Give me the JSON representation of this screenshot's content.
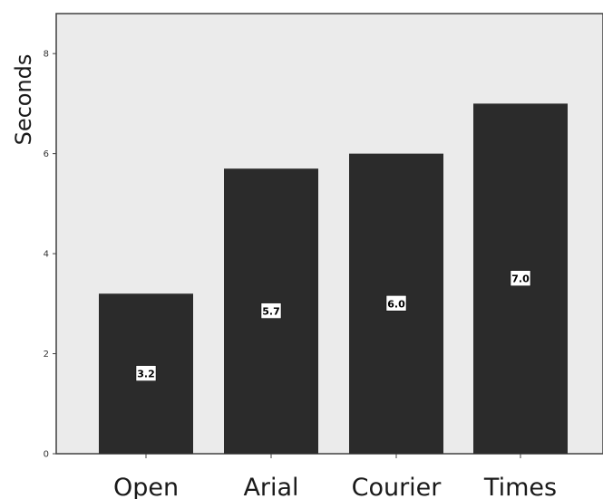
{
  "chart_data": {
    "type": "bar",
    "categories": [
      "Open",
      "Arial",
      "Courier",
      "Times"
    ],
    "values": [
      3.2,
      5.7,
      6.0,
      7.0
    ],
    "data_labels": [
      "3.2",
      "5.7",
      "6.0",
      "7.0"
    ],
    "title": "",
    "xlabel": "",
    "ylabel": "Seconds",
    "ylim": [
      0,
      8.8
    ],
    "yticks": [
      0,
      2,
      4,
      6,
      8
    ],
    "ytick_labels": [
      "0",
      "2",
      "4",
      "6",
      "8"
    ],
    "grid": false,
    "legend": "none",
    "colors": {
      "bar": "#2b2b2b",
      "plot_background": "#ebebeb",
      "axis": "#404040",
      "data_label_background": "#ffffff"
    }
  }
}
